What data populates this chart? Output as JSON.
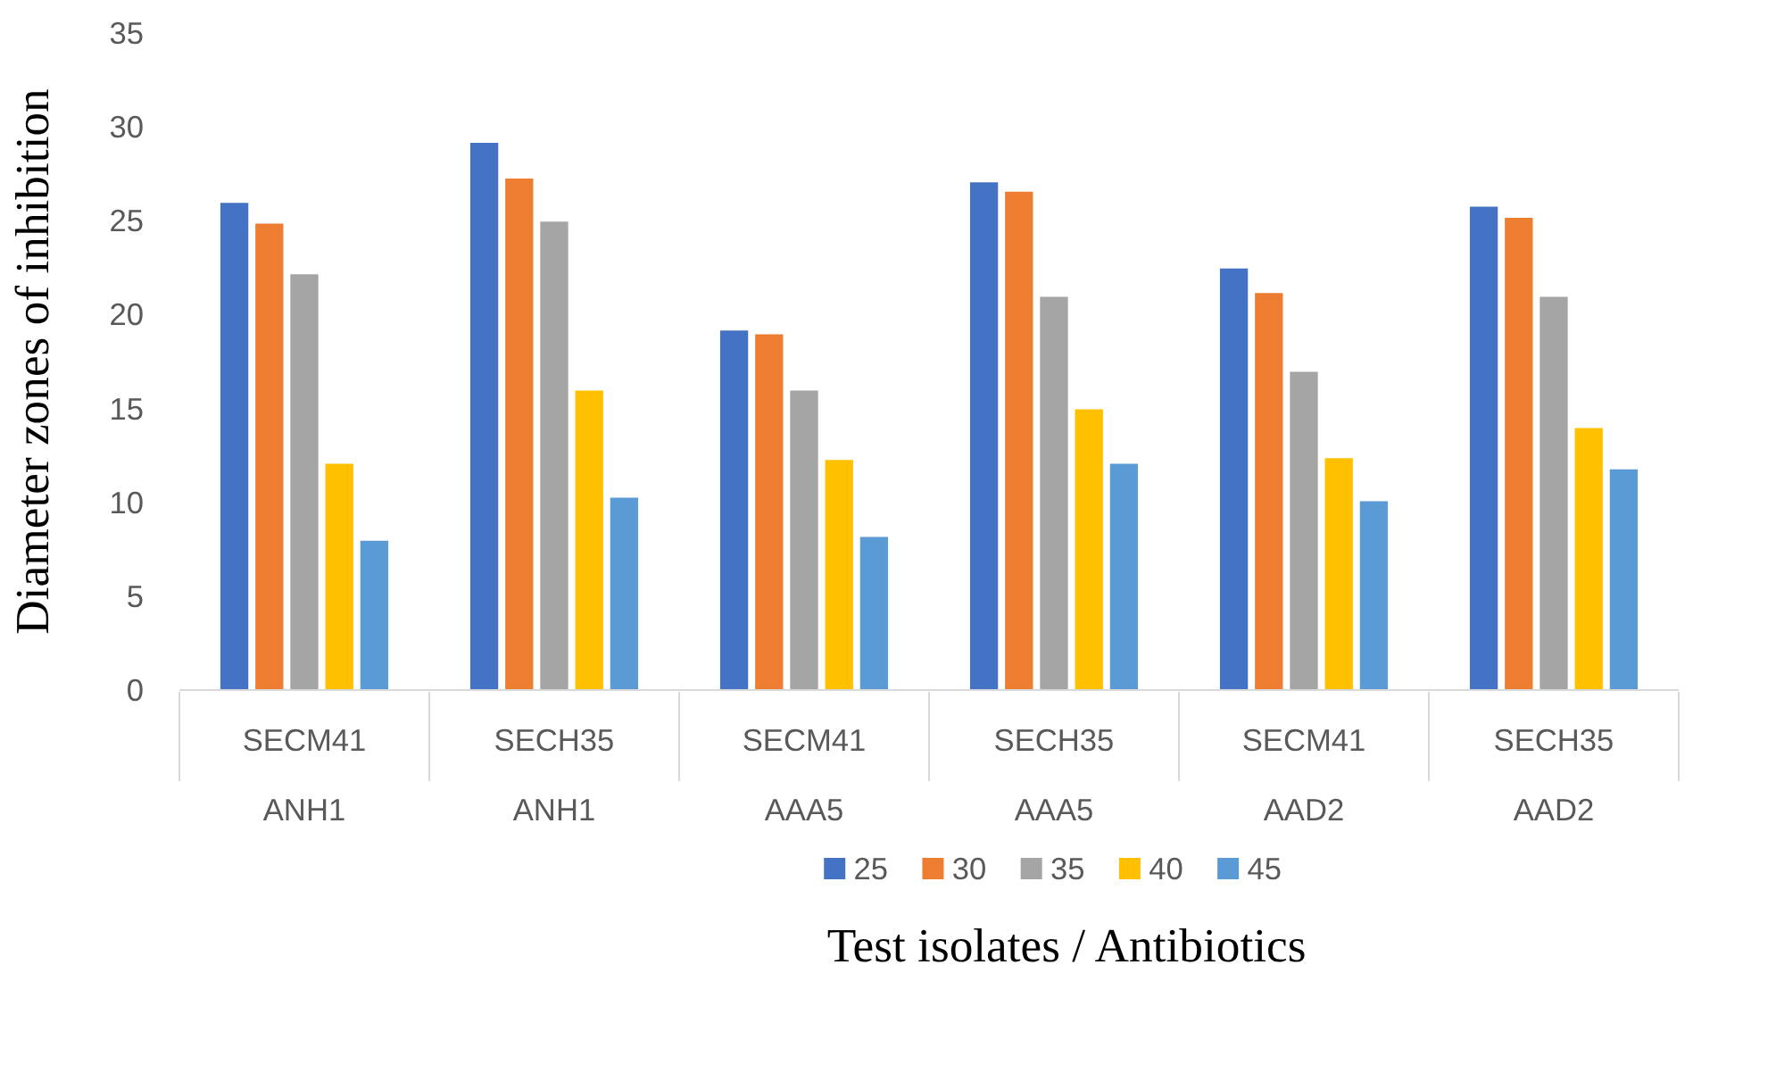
{
  "chart_data": {
    "type": "bar",
    "xlabel": "Test isolates / Antibiotics",
    "ylabel": "Diameter zones of inhibition",
    "categories": [
      "SECM41\nANH1",
      "SECH35\nANH1",
      "SECM41\nAAA5",
      "SECH35\nAAA5",
      "SECM41\nAAD2",
      "SECH35\nAAD2"
    ],
    "series": [
      {
        "name": "25",
        "color": "#4472c4",
        "values": [
          26.0,
          29.2,
          19.2,
          27.1,
          22.5,
          25.8
        ]
      },
      {
        "name": "30",
        "color": "#ed7d31",
        "values": [
          24.9,
          27.3,
          19.0,
          26.6,
          21.2,
          25.2
        ]
      },
      {
        "name": "35",
        "color": "#a5a5a5",
        "values": [
          22.2,
          25.0,
          16.0,
          21.0,
          17.0,
          21.0
        ]
      },
      {
        "name": "40",
        "color": "#ffc000",
        "values": [
          12.1,
          16.0,
          12.3,
          15.0,
          12.4,
          14.0
        ]
      },
      {
        "name": "45",
        "color": "#5b9bd5",
        "values": [
          8.0,
          10.3,
          8.2,
          12.1,
          10.1,
          11.8
        ]
      }
    ],
    "ylim": [
      0,
      35
    ],
    "yticks": [
      0,
      5,
      10,
      15,
      20,
      25,
      30,
      35
    ],
    "grid": false,
    "legend": "bottom"
  }
}
